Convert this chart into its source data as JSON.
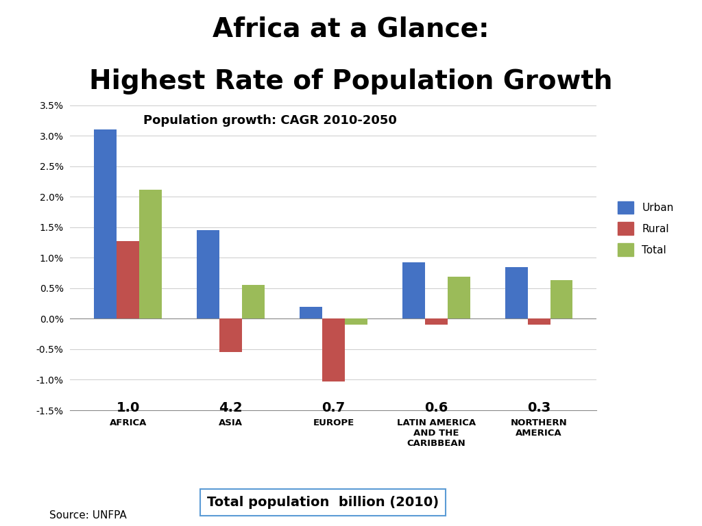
{
  "title_line1": "Africa at a Glance:",
  "title_line2": "Highest Rate of Population Growth",
  "subtitle": "Population growth: CAGR 2010-2050",
  "categories": [
    "AFRICA",
    "ASIA",
    "EUROPE",
    "LATIN AMERICA\nAND THE\nCARIBBEAN",
    "NORTHERN\nAMERICA"
  ],
  "urban": [
    0.031,
    0.0145,
    0.002,
    0.0092,
    0.0085
  ],
  "rural": [
    0.0127,
    -0.0055,
    -0.0103,
    -0.001,
    -0.001
  ],
  "total": [
    0.0212,
    0.0055,
    -0.001,
    0.0069,
    0.0063
  ],
  "population_labels": [
    "1.0",
    "4.2",
    "0.7",
    "0.6",
    "0.3"
  ],
  "urban_color": "#4472C4",
  "rural_color": "#C0504D",
  "total_color": "#9BBB59",
  "ylim": [
    -0.015,
    0.035
  ],
  "yticks": [
    -0.015,
    -0.01,
    -0.005,
    0.0,
    0.005,
    0.01,
    0.015,
    0.02,
    0.025,
    0.03,
    0.035
  ],
  "footer_label": "Total population  billion (2010)",
  "source_label": "Source: UNFPA",
  "background_color": "#FFFFFF",
  "bar_width": 0.22
}
